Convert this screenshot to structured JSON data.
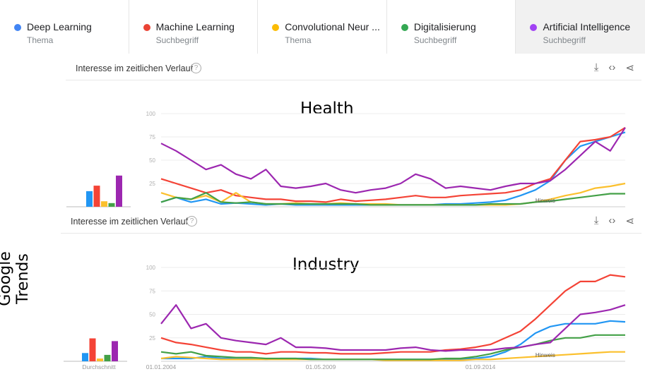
{
  "legend": [
    {
      "name": "Deep Learning",
      "type": "Thema",
      "color": "#4285f4"
    },
    {
      "name": "Machine Learning",
      "type": "Suchbegriff",
      "color": "#ea4335"
    },
    {
      "name": "Convolutional Neur ...",
      "type": "Thema",
      "color": "#fbbc04"
    },
    {
      "name": "Digitalisierung",
      "type": "Suchbegriff",
      "color": "#34a853"
    },
    {
      "name": "Artificial Intelligence",
      "type": "Suchbegriff",
      "color": "#a142f4"
    }
  ],
  "section_title": "Interesse im zeitlichen Verlauf",
  "help": "?",
  "side_label": "Google Trends",
  "average_label": "Durchschnitt",
  "note_label": "Hinweis",
  "chart_data": [
    {
      "type": "line",
      "title": "Health",
      "yticks": [
        "100",
        "75",
        "50",
        "25"
      ],
      "ylim": [
        0,
        100
      ],
      "x_start": 2004.0,
      "x_step": 0.5,
      "series": [
        {
          "name": "Deep Learning",
          "color": "#2196f3",
          "values": [
            5,
            10,
            5,
            8,
            3,
            4,
            3,
            2,
            3,
            2,
            2,
            2,
            2,
            2,
            2,
            2,
            2,
            2,
            2,
            3,
            3,
            4,
            5,
            7,
            12,
            18,
            28,
            50,
            65,
            70,
            75,
            80
          ]
        },
        {
          "name": "Machine Learning",
          "color": "#f44336",
          "values": [
            30,
            25,
            20,
            15,
            18,
            12,
            10,
            8,
            8,
            6,
            6,
            5,
            8,
            6,
            7,
            8,
            10,
            12,
            10,
            10,
            12,
            13,
            14,
            15,
            18,
            25,
            30,
            50,
            70,
            72,
            75,
            85
          ]
        },
        {
          "name": "Convolutional Neural Network",
          "color": "#fbc02d",
          "values": [
            15,
            10,
            8,
            12,
            5,
            15,
            5,
            3,
            3,
            4,
            3,
            3,
            4,
            3,
            3,
            3,
            2,
            2,
            2,
            2,
            2,
            2,
            2,
            2,
            3,
            5,
            8,
            12,
            15,
            20,
            22,
            25
          ]
        },
        {
          "name": "Digitalisierung",
          "color": "#43a047",
          "values": [
            5,
            10,
            8,
            15,
            5,
            4,
            5,
            3,
            3,
            3,
            3,
            3,
            3,
            3,
            2,
            2,
            2,
            2,
            2,
            2,
            2,
            2,
            3,
            3,
            3,
            5,
            6,
            8,
            10,
            12,
            14,
            14
          ]
        },
        {
          "name": "Artificial Intelligence",
          "color": "#9c27b0",
          "values": [
            68,
            60,
            50,
            40,
            45,
            35,
            30,
            40,
            22,
            20,
            22,
            25,
            18,
            15,
            18,
            20,
            25,
            35,
            30,
            20,
            22,
            20,
            18,
            22,
            25,
            25,
            28,
            40,
            55,
            70,
            60,
            85
          ]
        }
      ],
      "averages": [
        17,
        23,
        6,
        4,
        34
      ]
    },
    {
      "type": "line",
      "title": "Industry",
      "yticks": [
        "100",
        "75",
        "50",
        "25"
      ],
      "xticks": [
        "01.01.2004",
        "01.05.2009",
        "01.09.2014"
      ],
      "ylim": [
        0,
        100
      ],
      "x_start": 2004.0,
      "x_step": 0.5,
      "series": [
        {
          "name": "Deep Learning",
          "color": "#2196f3",
          "values": [
            3,
            3,
            3,
            5,
            3,
            3,
            3,
            2,
            3,
            3,
            3,
            2,
            2,
            2,
            2,
            2,
            2,
            2,
            2,
            2,
            2,
            3,
            5,
            10,
            18,
            30,
            37,
            40,
            40,
            40,
            43,
            42
          ]
        },
        {
          "name": "Machine Learning",
          "color": "#f44336",
          "values": [
            25,
            20,
            18,
            15,
            12,
            10,
            10,
            8,
            10,
            10,
            9,
            9,
            8,
            8,
            8,
            9,
            10,
            10,
            10,
            12,
            13,
            15,
            18,
            25,
            32,
            45,
            60,
            75,
            85,
            85,
            92,
            90
          ]
        },
        {
          "name": "Convolutional Neural Network",
          "color": "#fbc02d",
          "values": [
            3,
            5,
            4,
            3,
            2,
            2,
            2,
            2,
            2,
            2,
            2,
            2,
            2,
            2,
            2,
            1,
            1,
            1,
            1,
            1,
            1,
            2,
            2,
            3,
            4,
            5,
            6,
            7,
            8,
            9,
            10,
            10
          ]
        },
        {
          "name": "Digitalisierung",
          "color": "#43a047",
          "values": [
            10,
            8,
            10,
            6,
            5,
            4,
            4,
            3,
            3,
            3,
            2,
            2,
            2,
            2,
            2,
            2,
            2,
            2,
            2,
            3,
            3,
            5,
            8,
            12,
            15,
            18,
            22,
            25,
            25,
            28,
            28,
            28
          ]
        },
        {
          "name": "Artificial Intelligence",
          "color": "#9c27b0",
          "values": [
            40,
            60,
            35,
            40,
            25,
            22,
            20,
            18,
            25,
            15,
            15,
            14,
            12,
            12,
            12,
            12,
            14,
            15,
            12,
            11,
            12,
            12,
            12,
            14,
            15,
            18,
            20,
            35,
            50,
            52,
            55,
            60
          ]
        }
      ],
      "averages": [
        9,
        25,
        3,
        7,
        22
      ]
    }
  ]
}
